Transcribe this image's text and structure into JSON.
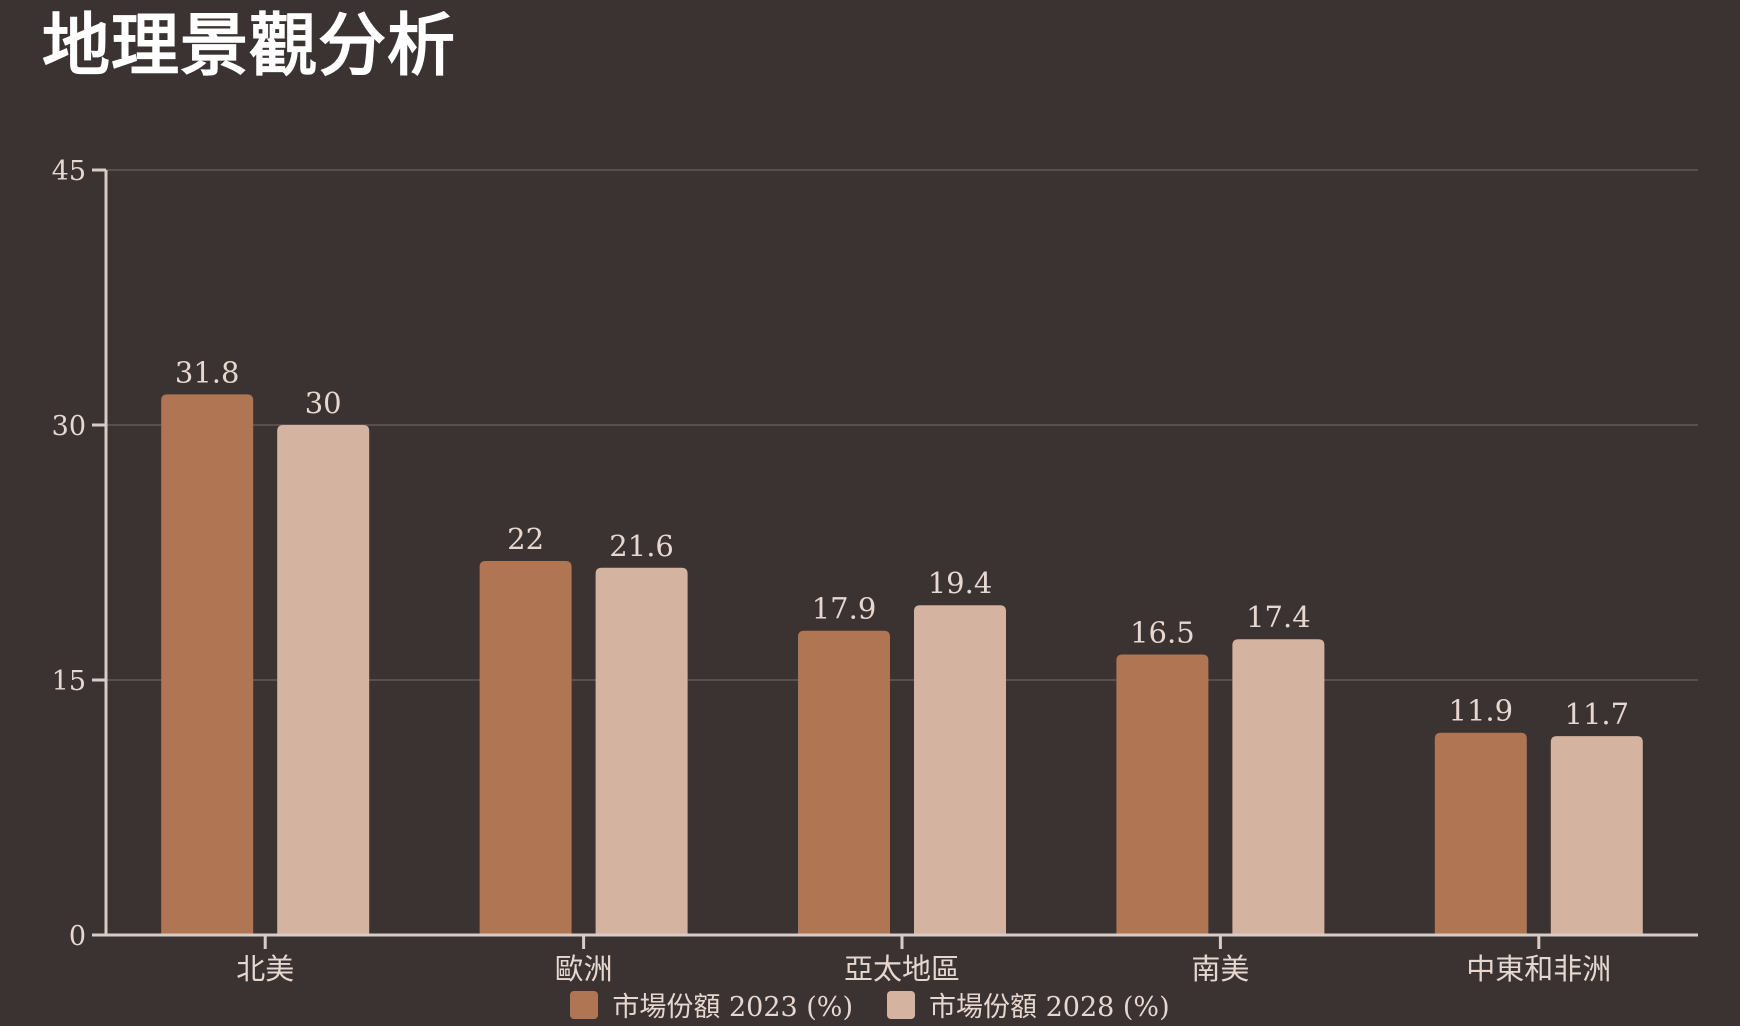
{
  "title": "地理景觀分析",
  "colors": {
    "background": "#3b3232",
    "series_2023": "#b07552",
    "series_2028": "#d4b3a0",
    "axis": "#d9ccc6",
    "grid": "#5a4f4f",
    "text": "#e6d8d0"
  },
  "chart_data": {
    "type": "bar",
    "categories": [
      "北美",
      "歐洲",
      "亞太地區",
      "南美",
      "中東和非洲"
    ],
    "series": [
      {
        "name": "市場份額 2023 (%)",
        "values": [
          31.8,
          22,
          17.9,
          16.5,
          11.9
        ],
        "color": "#b07552"
      },
      {
        "name": "市場份額 2028 (%)",
        "values": [
          30,
          21.6,
          19.4,
          17.4,
          11.7
        ],
        "color": "#d4b3a0"
      }
    ],
    "yticks": [
      0,
      15,
      30,
      45
    ],
    "ylim": [
      0,
      45
    ],
    "grid": true,
    "legend_position": "bottom-center",
    "data_labels": true
  }
}
